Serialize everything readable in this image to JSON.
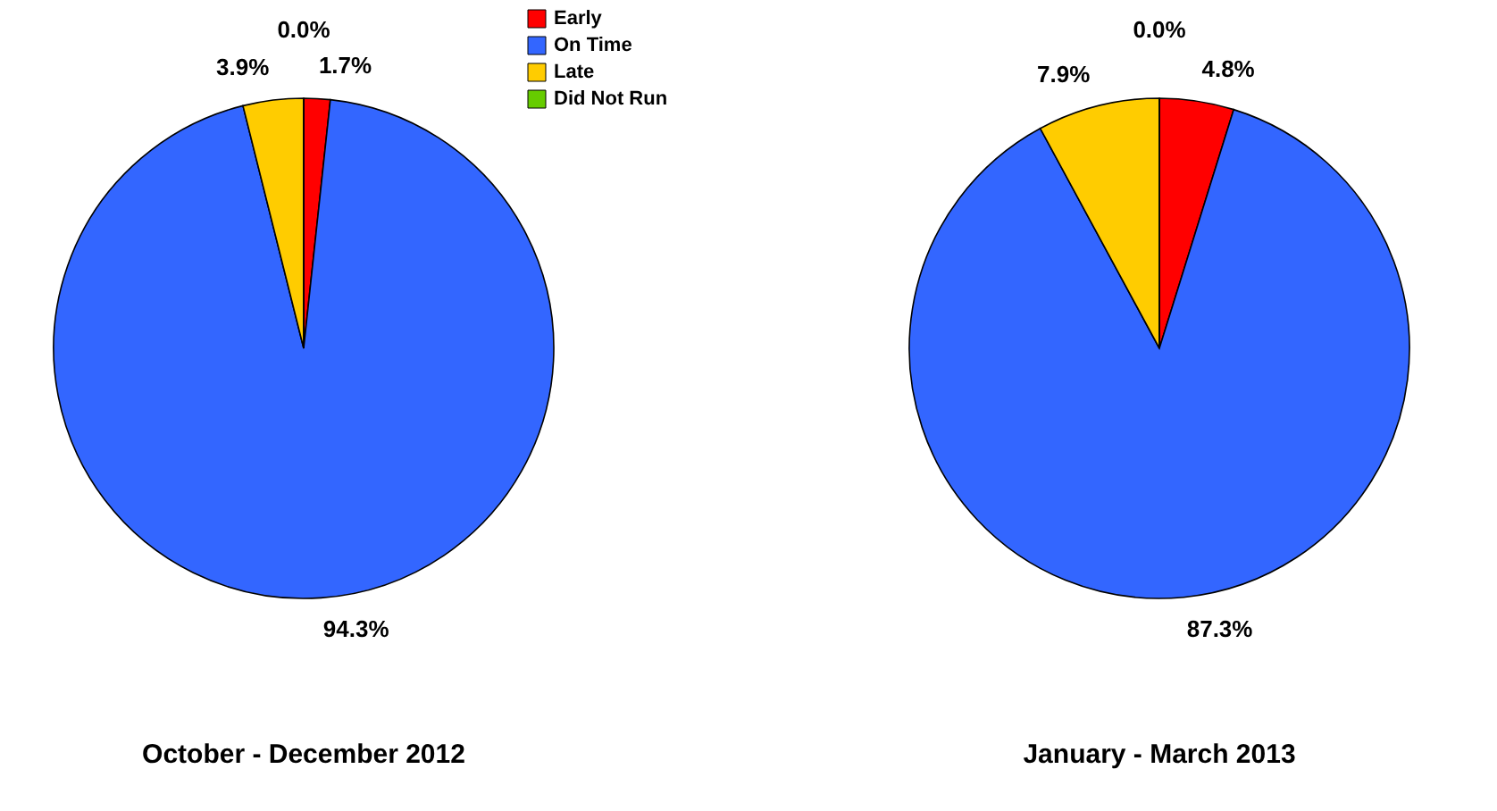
{
  "chart_data": [
    {
      "type": "pie",
      "title": "October - December 2012",
      "categories": [
        "Early",
        "On Time",
        "Late",
        "Did Not Run"
      ],
      "values": [
        1.7,
        94.3,
        3.9,
        0.0
      ],
      "colors": [
        "#ff0000",
        "#3366ff",
        "#ffcc00",
        "#66cc00"
      ],
      "value_labels": [
        "1.7%",
        "94.3%",
        "3.9%",
        "0.0%"
      ],
      "legend": "right"
    },
    {
      "type": "pie",
      "title": "January - March 2013",
      "categories": [
        null,
        null,
        null,
        null
      ],
      "values": [
        4.8,
        87.3,
        7.9,
        0.0
      ],
      "colors": [
        "#ff0000",
        "#3366ff",
        "#ffcc00",
        "#66cc00"
      ],
      "value_labels": [
        "4.8%",
        "87.3%",
        "7.9%",
        "0.0%"
      ],
      "legend": false
    }
  ]
}
